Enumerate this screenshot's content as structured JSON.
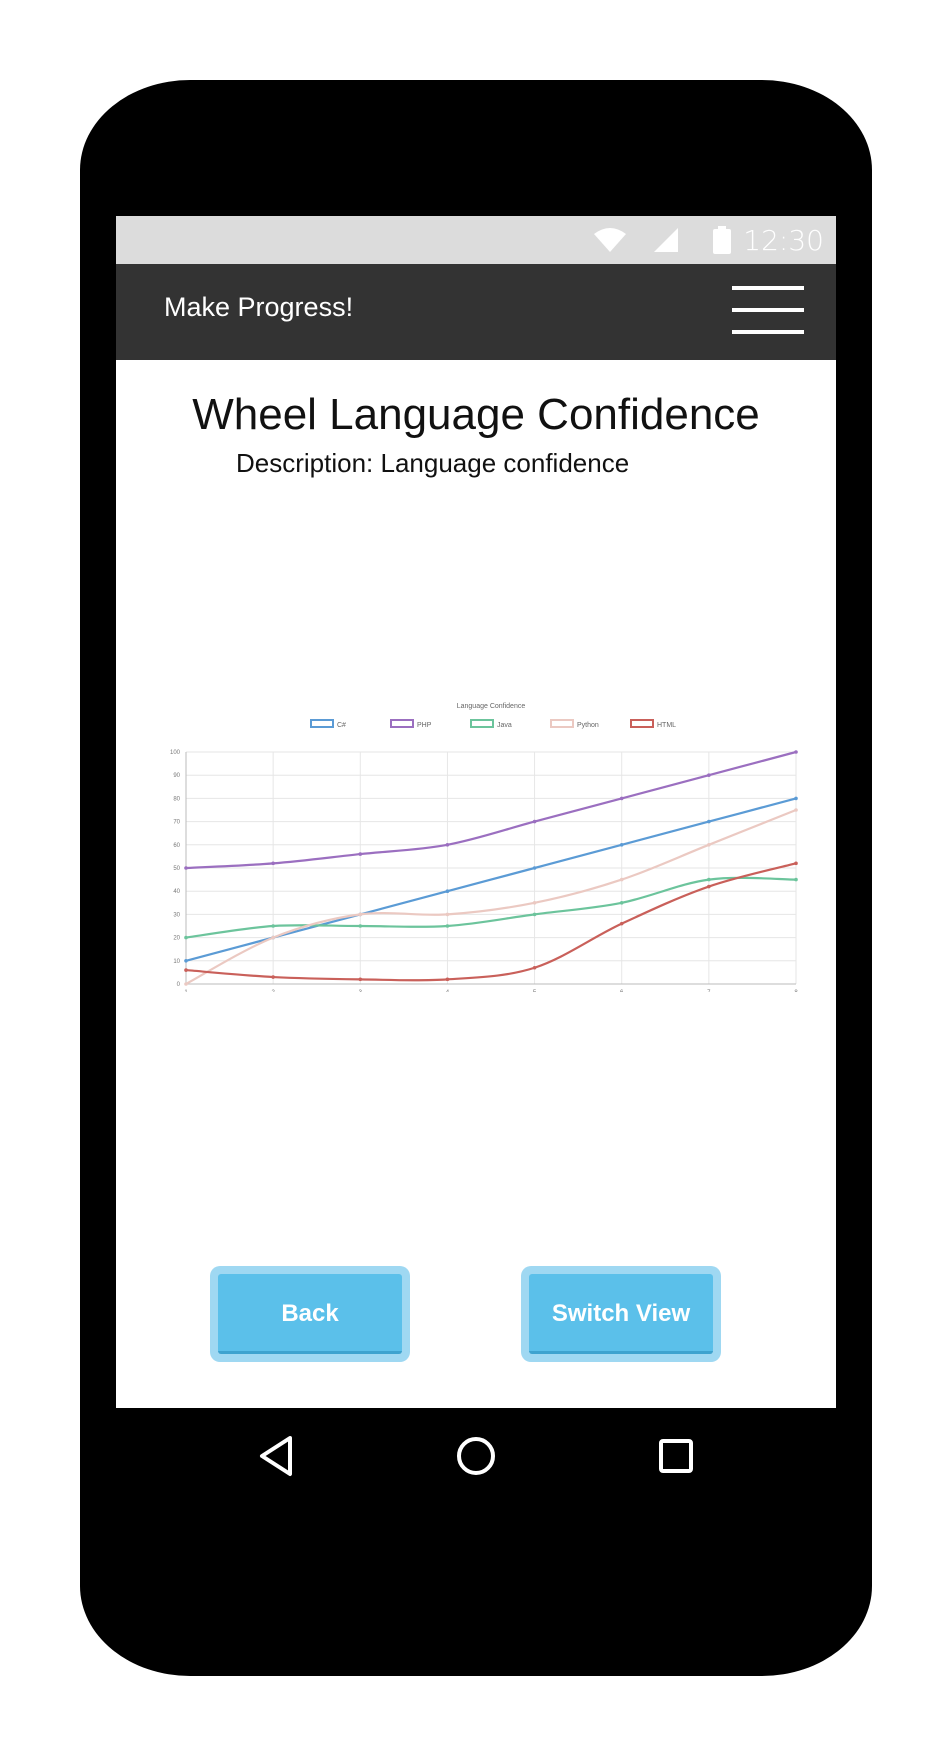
{
  "status_bar": {
    "time": "12:30"
  },
  "app_bar": {
    "title": "Make Progress!"
  },
  "page": {
    "title": "Wheel Language Confidence",
    "description": "Description: Language confidence"
  },
  "buttons": {
    "back": "Back",
    "switch_view": "Switch View"
  },
  "chart_data": {
    "type": "line",
    "title": "Language Confidence",
    "x": [
      1,
      2,
      3,
      4,
      5,
      6,
      7,
      8
    ],
    "ylim": [
      0,
      100
    ],
    "yticks": [
      0,
      10,
      20,
      30,
      40,
      50,
      60,
      70,
      80,
      90,
      100
    ],
    "grid": true,
    "legend_position": "top",
    "series": [
      {
        "name": "C#",
        "color": "#5b9bd5",
        "values": [
          10,
          20,
          30,
          40,
          50,
          60,
          70,
          80
        ]
      },
      {
        "name": "PHP",
        "color": "#9b6fc0",
        "values": [
          50,
          52,
          56,
          60,
          70,
          80,
          90,
          100
        ]
      },
      {
        "name": "Java",
        "color": "#6cc49c",
        "values": [
          20,
          25,
          25,
          25,
          30,
          35,
          45,
          45
        ]
      },
      {
        "name": "Python",
        "color": "#ebc9c2",
        "values": [
          0,
          20,
          30,
          30,
          35,
          45,
          60,
          75
        ]
      },
      {
        "name": "HTML",
        "color": "#c9605a",
        "values": [
          6,
          3,
          2,
          2,
          7,
          26,
          42,
          52
        ]
      }
    ]
  }
}
